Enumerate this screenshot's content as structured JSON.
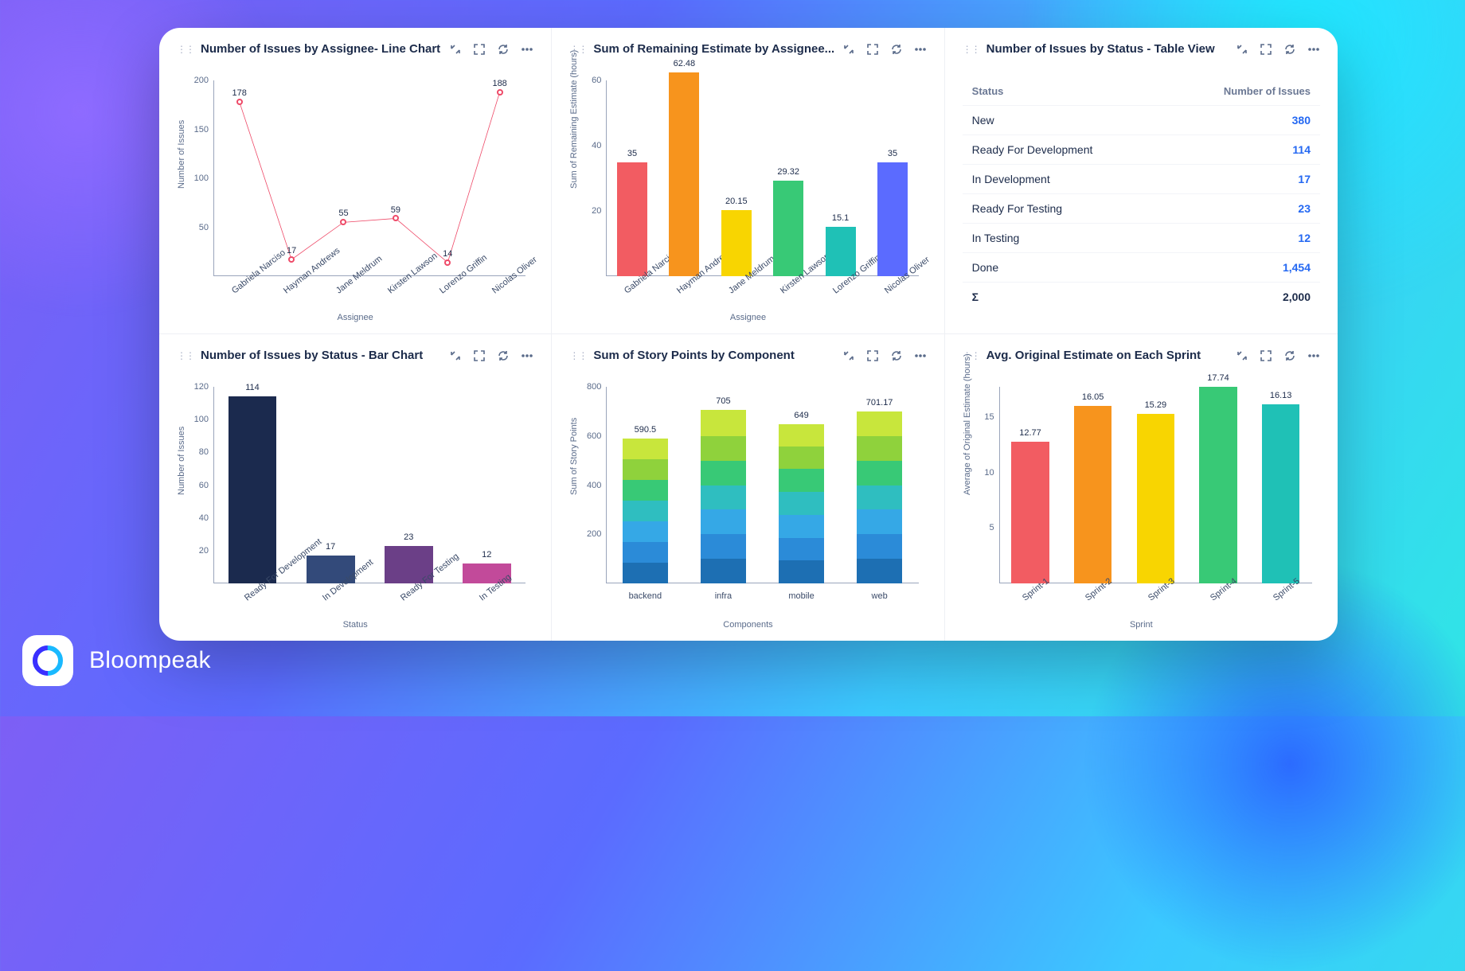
{
  "brand": {
    "name": "Bloompeak"
  },
  "palette": {
    "text": "#1c2b4a",
    "muted": "#5a6b8a",
    "axis": "#9aa5bb",
    "link": "#2468f2",
    "line_marker": "#ee4a68",
    "bg": "#ffffff"
  },
  "panels": {
    "line_assignee": {
      "title": "Number of Issues by Assignee- Line Chart",
      "ylabel": "Number of Issues",
      "xlabel": "Assignee",
      "ylim": [
        0,
        200
      ],
      "ytick_step": 50,
      "categories": [
        "Gabriela Narciso",
        "Hayman Andrews",
        "Jane Meldrum",
        "Kirsten Lawson",
        "Lorenzo Griffin",
        "Nicolas Oliver"
      ],
      "values": [
        178,
        17,
        55,
        59,
        14,
        188
      ],
      "line_color": "#ee4a68",
      "marker_border": "#ee4a68",
      "marker_fill": "#ffffff",
      "label_fontsize": 11
    },
    "bar_remaining": {
      "title": "Sum of Remaining Estimate by Assignee...",
      "ylabel": "Sum of Remaining Estimate (hours)",
      "xlabel": "Assignee",
      "ylim": [
        0,
        60
      ],
      "ytick_step": 20,
      "categories": [
        "Gabriela Narciso",
        "Hayman Andrews",
        "Jane Meldrum",
        "Kirsten Lawson",
        "Lorenzo Griffin",
        "Nicolas Oliver"
      ],
      "values": [
        35,
        62.48,
        20.15,
        29.32,
        15.1,
        35
      ],
      "bar_colors": [
        "#f25c62",
        "#f7941d",
        "#f8d501",
        "#38c976",
        "#1fc1b6",
        "#5b6bff"
      ],
      "bar_width": 0.58
    },
    "table_status": {
      "title": "Number of Issues by Status - Table View",
      "columns": [
        "Status",
        "Number of Issues"
      ],
      "rows": [
        {
          "status": "New",
          "count": "380"
        },
        {
          "status": "Ready For Development",
          "count": "114"
        },
        {
          "status": "In Development",
          "count": "17"
        },
        {
          "status": "Ready For Testing",
          "count": "23"
        },
        {
          "status": "In Testing",
          "count": "12"
        },
        {
          "status": "Done",
          "count": "1,454"
        }
      ],
      "total_label": "Σ",
      "total_count": "2,000"
    },
    "bar_status": {
      "title": "Number of Issues by Status - Bar Chart",
      "ylabel": "Number of Issues",
      "xlabel": "Status",
      "ylim": [
        0,
        120
      ],
      "ytick_step": 20,
      "categories": [
        "Ready For Development",
        "In Development",
        "Ready For Testing",
        "In Testing"
      ],
      "values": [
        114,
        17,
        23,
        12
      ],
      "bar_colors": [
        "#1b2a4e",
        "#334a7a",
        "#6b3f87",
        "#c24a9a"
      ],
      "bar_width": 0.62
    },
    "stacked_component": {
      "title": "Sum of Story Points by Component",
      "ylabel": "Sum of Story Points",
      "xlabel": "Components",
      "ylim": [
        0,
        800
      ],
      "ytick_step": 200,
      "categories": [
        "backend",
        "infra",
        "mobile",
        "web"
      ],
      "totals": [
        590.5,
        705,
        649,
        701.17
      ],
      "segment_colors": [
        "#1d6fb3",
        "#2b8bd8",
        "#35a8e6",
        "#2fbec0",
        "#38c976",
        "#8fd23c",
        "#c8e63c"
      ],
      "segments": [
        [
          84,
          84,
          84,
          84,
          84,
          84,
          86.5
        ],
        [
          100,
          100,
          100,
          100,
          100,
          100,
          105
        ],
        [
          93,
          93,
          93,
          93,
          93,
          93,
          91
        ],
        [
          100,
          100,
          100,
          100,
          100,
          100,
          101.17
        ]
      ],
      "bar_width": 0.58
    },
    "bar_sprint": {
      "title": "Avg. Original Estimate on Each Sprint",
      "ylabel": "Average of Original Estimate (hours)",
      "xlabel": "Sprint",
      "ylim": [
        0,
        17.74
      ],
      "yticks": [
        5,
        10,
        15
      ],
      "categories": [
        "Sprint-1",
        "Sprint-2",
        "Sprint-3",
        "Sprint-4",
        "Sprint-5"
      ],
      "values": [
        12.77,
        16.05,
        15.29,
        17.74,
        16.13
      ],
      "bar_colors": [
        "#f25c62",
        "#f7941d",
        "#f8d501",
        "#38c976",
        "#1fc1b6"
      ],
      "bar_width": 0.6
    }
  }
}
